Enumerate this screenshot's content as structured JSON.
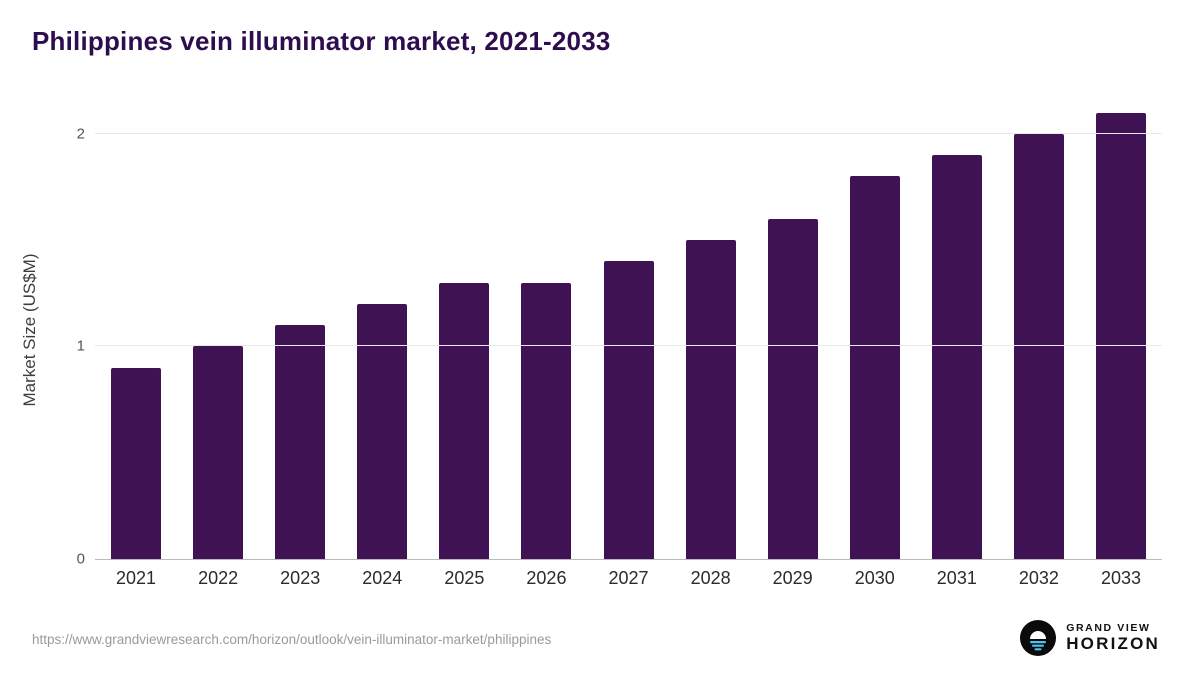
{
  "title": "Philippines vein illuminator market, 2021-2033",
  "chart_data": {
    "type": "bar",
    "title": "Philippines vein illuminator market, 2021-2033",
    "categories": [
      "2021",
      "2022",
      "2023",
      "2024",
      "2025",
      "2026",
      "2027",
      "2028",
      "2029",
      "2030",
      "2031",
      "2032",
      "2033"
    ],
    "values": [
      0.9,
      1.0,
      1.1,
      1.2,
      1.3,
      1.3,
      1.4,
      1.5,
      1.6,
      1.8,
      1.9,
      2.0,
      2.1
    ],
    "xlabel": "",
    "ylabel": "Market Size (US$M)",
    "ylim": [
      0,
      2.15
    ],
    "yticks": [
      0,
      1,
      2
    ],
    "bar_color": "#3f1254",
    "grid": "horizontal",
    "legend": "none"
  },
  "footer": {
    "source_url": "https://www.grandviewresearch.com/horizon/outlook/vein-illuminator-market/philippines",
    "logo": {
      "line1": "GRAND VIEW",
      "line2": "HORIZON",
      "icon": "horizon-sunrise-icon",
      "icon_bg": "#0b0b0b",
      "icon_accent": "#4cc2f1"
    }
  }
}
